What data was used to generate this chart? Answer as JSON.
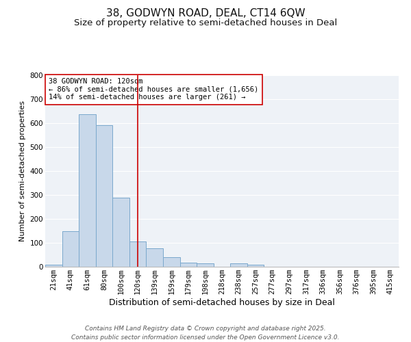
{
  "title": "38, GODWYN ROAD, DEAL, CT14 6QW",
  "subtitle": "Size of property relative to semi-detached houses in Deal",
  "xlabel": "Distribution of semi-detached houses by size in Deal",
  "ylabel": "Number of semi-detached properties",
  "bar_labels": [
    "21sqm",
    "41sqm",
    "61sqm",
    "80sqm",
    "100sqm",
    "120sqm",
    "139sqm",
    "159sqm",
    "179sqm",
    "198sqm",
    "218sqm",
    "238sqm",
    "257sqm",
    "277sqm",
    "297sqm",
    "317sqm",
    "336sqm",
    "356sqm",
    "376sqm",
    "395sqm",
    "415sqm"
  ],
  "bar_values": [
    10,
    148,
    638,
    590,
    290,
    105,
    78,
    40,
    18,
    15,
    0,
    15,
    10,
    0,
    0,
    0,
    0,
    0,
    0,
    0,
    0
  ],
  "bar_color": "#c8d8ea",
  "bar_edge_color": "#7aa8cc",
  "bar_width": 1.0,
  "vline_x": 5,
  "vline_color": "#cc0000",
  "annotation_title": "38 GODWYN ROAD: 120sqm",
  "annotation_line1": "← 86% of semi-detached houses are smaller (1,656)",
  "annotation_line2": "14% of semi-detached houses are larger (261) →",
  "annotation_box_facecolor": "#ffffff",
  "annotation_box_edgecolor": "#cc0000",
  "ylim": [
    0,
    800
  ],
  "yticks": [
    0,
    100,
    200,
    300,
    400,
    500,
    600,
    700,
    800
  ],
  "background_color": "#ffffff",
  "plot_bg_color": "#eef2f7",
  "grid_color": "#ffffff",
  "footer_line1": "Contains HM Land Registry data © Crown copyright and database right 2025.",
  "footer_line2": "Contains public sector information licensed under the Open Government Licence v3.0.",
  "title_fontsize": 11,
  "subtitle_fontsize": 9.5,
  "xlabel_fontsize": 9,
  "ylabel_fontsize": 8,
  "tick_fontsize": 7.5,
  "annotation_fontsize": 7.5,
  "footer_fontsize": 6.5
}
